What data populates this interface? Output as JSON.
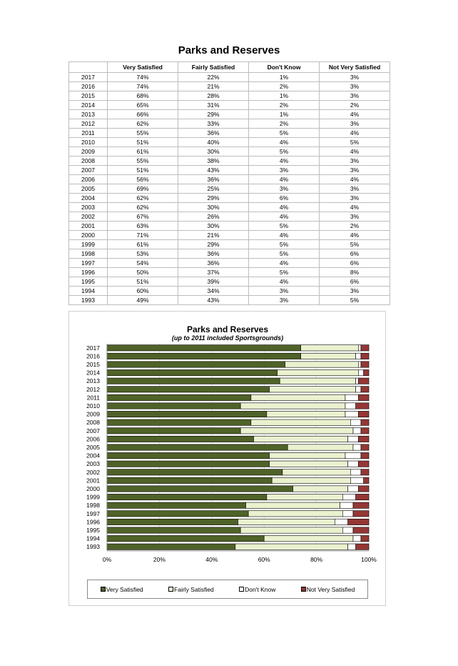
{
  "table": {
    "title": "Parks and Reserves",
    "headers": [
      "",
      "Very Satisfied",
      "Fairly Satisfied",
      "Don't Know",
      "Not Very Satisfied"
    ],
    "rows": [
      [
        "2017",
        "74%",
        "22%",
        "1%",
        "3%"
      ],
      [
        "2016",
        "74%",
        "21%",
        "2%",
        "3%"
      ],
      [
        "2015",
        "68%",
        "28%",
        "1%",
        "3%"
      ],
      [
        "2014",
        "65%",
        "31%",
        "2%",
        "2%"
      ],
      [
        "2013",
        "66%",
        "29%",
        "1%",
        "4%"
      ],
      [
        "2012",
        "62%",
        "33%",
        "2%",
        "3%"
      ],
      [
        "2011",
        "55%",
        "36%",
        "5%",
        "4%"
      ],
      [
        "2010",
        "51%",
        "40%",
        "4%",
        "5%"
      ],
      [
        "2009",
        "61%",
        "30%",
        "5%",
        "4%"
      ],
      [
        "2008",
        "55%",
        "38%",
        "4%",
        "3%"
      ],
      [
        "2007",
        "51%",
        "43%",
        "3%",
        "3%"
      ],
      [
        "2006",
        "56%",
        "36%",
        "4%",
        "4%"
      ],
      [
        "2005",
        "69%",
        "25%",
        "3%",
        "3%"
      ],
      [
        "2004",
        "62%",
        "29%",
        "6%",
        "3%"
      ],
      [
        "2003",
        "62%",
        "30%",
        "4%",
        "4%"
      ],
      [
        "2002",
        "67%",
        "26%",
        "4%",
        "3%"
      ],
      [
        "2001",
        "63%",
        "30%",
        "5%",
        "2%"
      ],
      [
        "2000",
        "71%",
        "21%",
        "4%",
        "4%"
      ],
      [
        "1999",
        "61%",
        "29%",
        "5%",
        "5%"
      ],
      [
        "1998",
        "53%",
        "36%",
        "5%",
        "6%"
      ],
      [
        "1997",
        "54%",
        "36%",
        "4%",
        "6%"
      ],
      [
        "1996",
        "50%",
        "37%",
        "5%",
        "8%"
      ],
      [
        "1995",
        "51%",
        "39%",
        "4%",
        "6%"
      ],
      [
        "1994",
        "60%",
        "34%",
        "3%",
        "3%"
      ],
      [
        "1993",
        "49%",
        "43%",
        "3%",
        "5%"
      ]
    ]
  },
  "chart_data": {
    "type": "bar",
    "orientation": "horizontal",
    "stacked": "percent",
    "title": "Parks and Reserves",
    "subtitle": "(up to 2011 included Sportsgrounds)",
    "categories": [
      "2017",
      "2016",
      "2015",
      "2014",
      "2013",
      "2012",
      "2011",
      "2010",
      "2009",
      "2008",
      "2007",
      "2006",
      "2005",
      "2004",
      "2003",
      "2002",
      "2001",
      "2000",
      "1999",
      "1998",
      "1997",
      "1996",
      "1995",
      "1994",
      "1993"
    ],
    "series": [
      {
        "name": "Very Satisfied",
        "color": "#4f6228",
        "values": [
          74,
          74,
          68,
          65,
          66,
          62,
          55,
          51,
          61,
          55,
          51,
          56,
          69,
          62,
          62,
          67,
          63,
          71,
          61,
          53,
          54,
          50,
          51,
          60,
          49
        ]
      },
      {
        "name": "Fairly Satisfied",
        "color": "#eaf1cf",
        "values": [
          22,
          21,
          28,
          31,
          29,
          33,
          36,
          40,
          30,
          38,
          43,
          36,
          25,
          29,
          30,
          26,
          30,
          21,
          29,
          36,
          36,
          37,
          39,
          34,
          43
        ]
      },
      {
        "name": "Don't Know",
        "color": "#ffffff",
        "values": [
          1,
          2,
          1,
          2,
          1,
          2,
          5,
          4,
          5,
          4,
          3,
          4,
          3,
          6,
          4,
          4,
          5,
          4,
          5,
          5,
          4,
          5,
          4,
          3,
          3
        ]
      },
      {
        "name": "Not Very Satisfied",
        "color": "#953735",
        "values": [
          3,
          3,
          3,
          2,
          4,
          3,
          4,
          5,
          4,
          3,
          3,
          4,
          3,
          3,
          4,
          3,
          2,
          4,
          5,
          6,
          6,
          8,
          6,
          3,
          5
        ]
      }
    ],
    "xlim": [
      0,
      100
    ],
    "xticks": [
      "0%",
      "20%",
      "40%",
      "60%",
      "80%",
      "100%"
    ],
    "legend_position": "bottom",
    "grid": true
  }
}
